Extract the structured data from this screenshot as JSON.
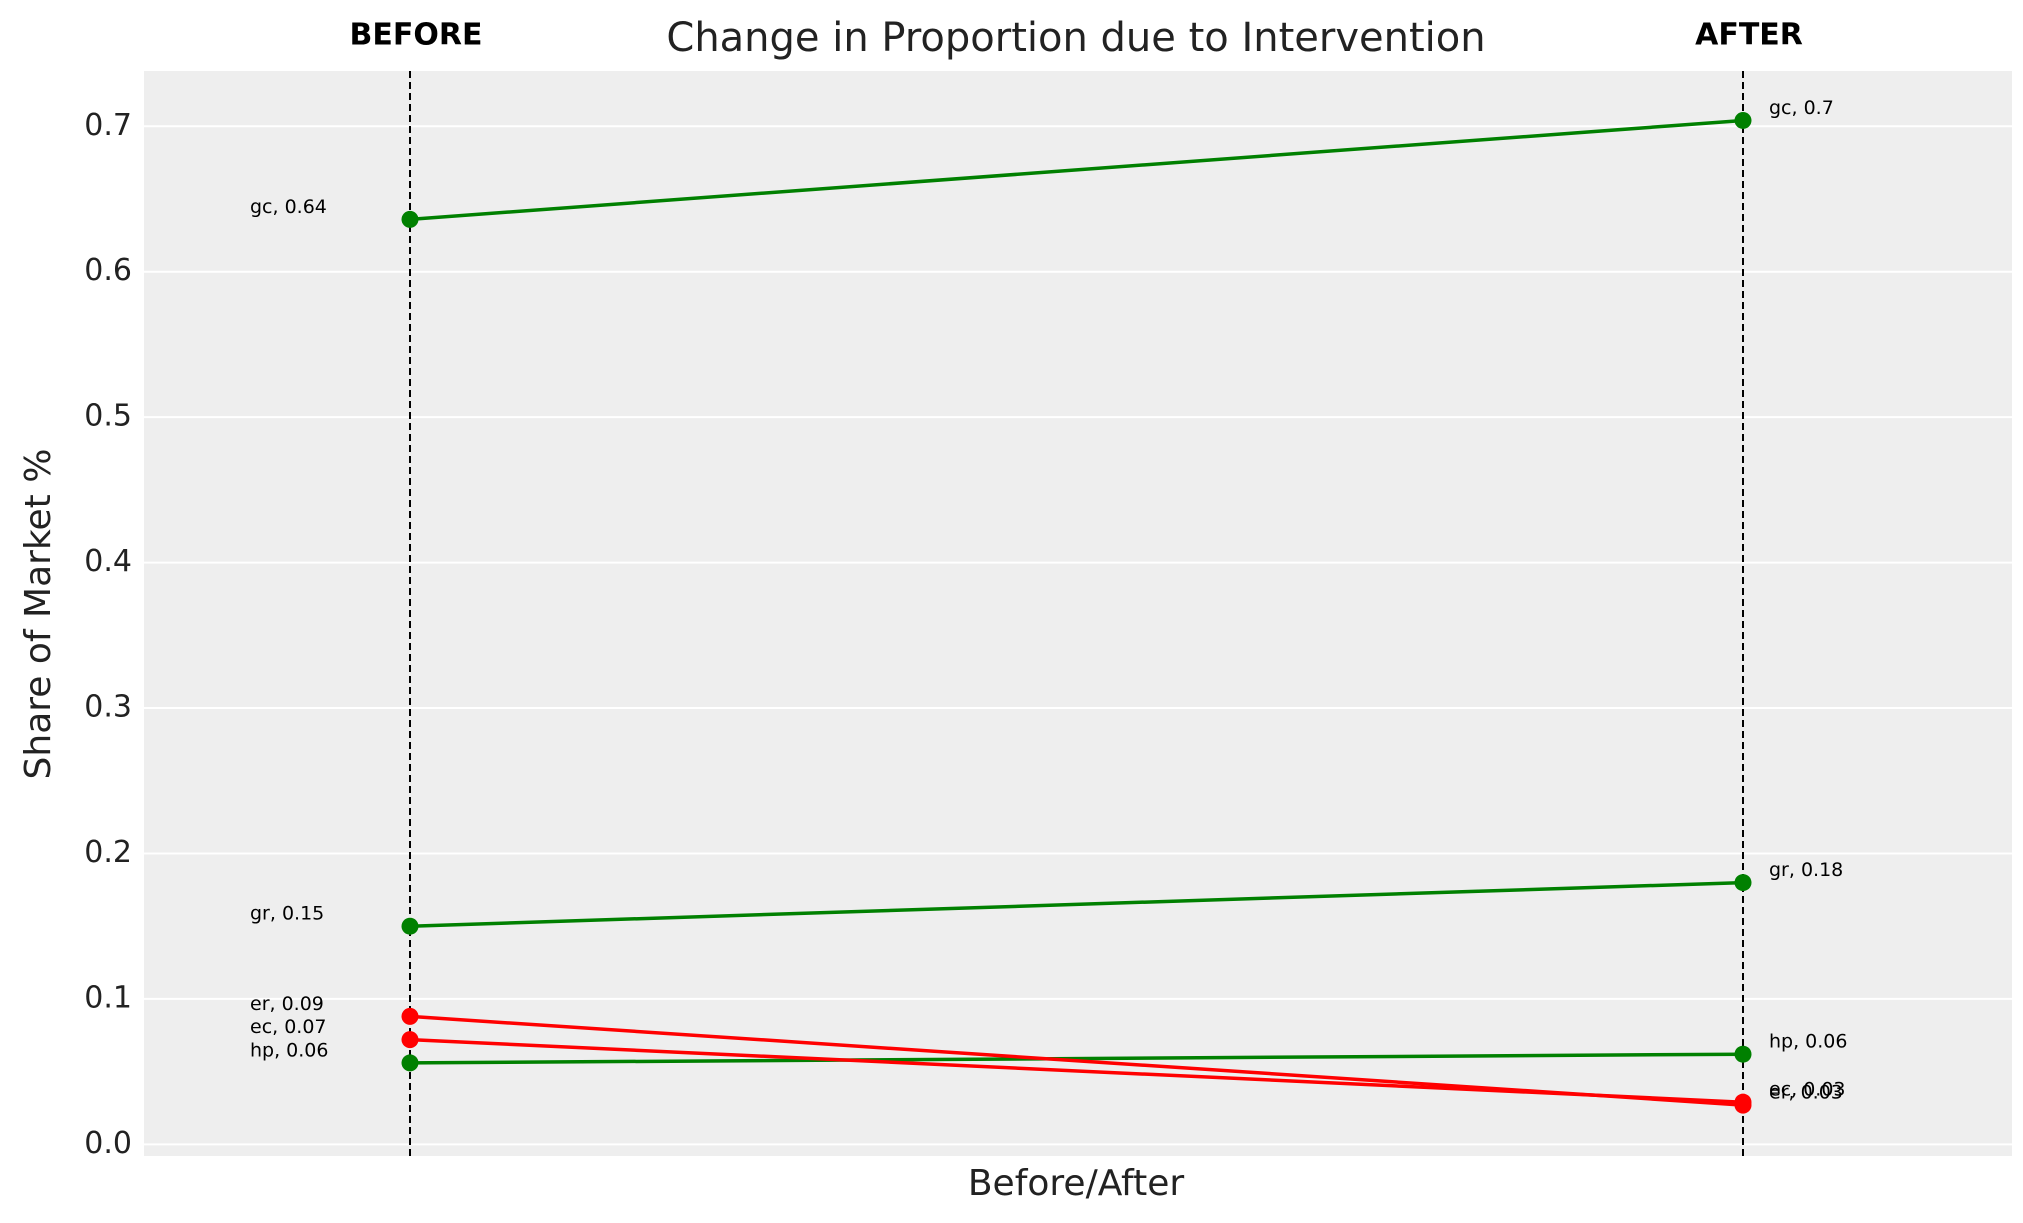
{
  "chart_data": {
    "type": "slope",
    "title": "Change in Proportion due to Intervention",
    "xlabel": "Before/After",
    "ylabel": "Share of Market %",
    "columns": [
      "BEFORE",
      "AFTER"
    ],
    "series": [
      {
        "name": "gc",
        "color": "#008000",
        "values": [
          0.636,
          0.704
        ],
        "value_labels": [
          "gc, 0.64",
          "gc, 0.7"
        ]
      },
      {
        "name": "gr",
        "color": "#008000",
        "values": [
          0.15,
          0.18
        ],
        "value_labels": [
          "gr, 0.15",
          "gr, 0.18"
        ]
      },
      {
        "name": "hp",
        "color": "#008000",
        "values": [
          0.056,
          0.062
        ],
        "value_labels": [
          "hp, 0.06",
          "hp, 0.06"
        ]
      },
      {
        "name": "er",
        "color": "#ff0000",
        "values": [
          0.088,
          0.027
        ],
        "value_labels": [
          "er, 0.09",
          "er, 0.03"
        ]
      },
      {
        "name": "ec",
        "color": "#ff0000",
        "values": [
          0.072,
          0.029
        ],
        "value_labels": [
          "ec, 0.07",
          "ec, 0.03"
        ]
      }
    ],
    "ylim": [
      -0.008,
      0.738
    ],
    "yticks": [
      {
        "value": 0,
        "label": "0.0"
      },
      0.1,
      0.2,
      0.3,
      0.4,
      0.5,
      0.6,
      0.7
    ],
    "grid": true
  }
}
